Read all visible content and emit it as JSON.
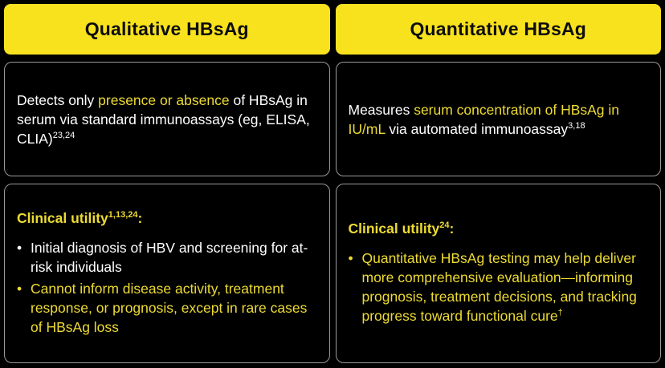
{
  "colors": {
    "background": "#000000",
    "header_bg": "#F8E21D",
    "header_text": "#0D0D0D",
    "text_white": "#FFFFFF",
    "text_yellow": "#EDDB33",
    "cell_border": "#9A9A9A"
  },
  "columns": [
    {
      "id": "qualitative",
      "header_label": "Qualitative HBsAg",
      "description": {
        "segments": [
          {
            "text": "Detects only "
          },
          {
            "text": "presence or absence",
            "yellow": true
          },
          {
            "text": " of HBsAg in serum via standard immunoassays (eg, ELISA, CLIA)"
          },
          {
            "text": "23,24",
            "sup": true
          }
        ]
      },
      "utility": {
        "heading_segments": [
          {
            "text": "Clinical utility",
            "yellow": true,
            "bold": true
          },
          {
            "text": "1,13,24",
            "yellow": true,
            "bold": true,
            "sup": true
          },
          {
            "text": ":",
            "yellow": true,
            "bold": true
          }
        ],
        "bullets": [
          {
            "segments": [
              {
                "text": "Initial diagnosis of HBV and screening for at-risk individuals"
              }
            ]
          },
          {
            "segments": [
              {
                "text": "Cannot inform disease activity, treatment response, or prognosis, except in rare cases of HBsAg loss",
                "yellow": true
              }
            ]
          }
        ]
      }
    },
    {
      "id": "quantitative",
      "header_label": "Quantitative HBsAg",
      "description": {
        "segments": [
          {
            "text": "Measures "
          },
          {
            "text": "serum concentration of HBsAg in IU/mL",
            "yellow": true
          },
          {
            "text": " via automated immunoassay"
          },
          {
            "text": "3,18",
            "sup": true
          }
        ]
      },
      "utility": {
        "heading_segments": [
          {
            "text": "Clinical utility",
            "yellow": true,
            "bold": true
          },
          {
            "text": "24",
            "yellow": true,
            "bold": true,
            "sup": true
          },
          {
            "text": ":",
            "yellow": true,
            "bold": true
          }
        ],
        "bullets": [
          {
            "segments": [
              {
                "text": "Quantitative HBsAg testing may help deliver more comprehensive evaluation—informing prognosis, treatment decisions, and tracking progress toward functional cure",
                "yellow": true
              },
              {
                "text": "†",
                "yellow": true,
                "sup": true
              }
            ]
          }
        ]
      }
    }
  ]
}
